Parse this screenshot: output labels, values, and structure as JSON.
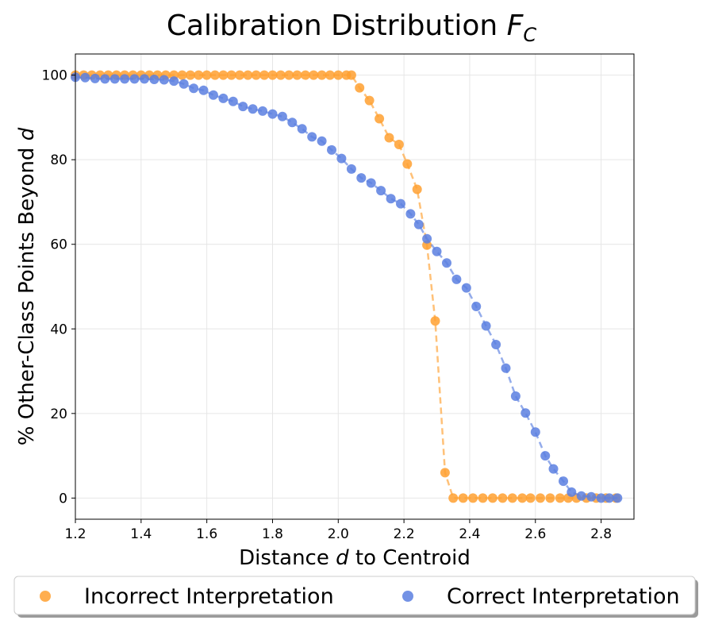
{
  "chart_data": {
    "type": "line",
    "title": "Calibration Distribution",
    "title_math": {
      "symbol": "F",
      "subscript": "C"
    },
    "xlabel": {
      "prefix": "Distance ",
      "variable": "d",
      "suffix": " to Centroid"
    },
    "ylabel": {
      "prefix": "% Other-Class Points Beyond ",
      "variable": "d"
    },
    "xlim": [
      1.2,
      2.9
    ],
    "ylim": [
      -5,
      105
    ],
    "xticks": [
      1.2,
      1.4,
      1.6,
      1.8,
      2.0,
      2.2,
      2.4,
      2.6,
      2.8
    ],
    "xtick_labels": [
      "1.2",
      "1.4",
      "1.6",
      "1.8",
      "2.0",
      "2.2",
      "2.4",
      "2.6",
      "2.8"
    ],
    "yticks": [
      0,
      20,
      40,
      60,
      80,
      100
    ],
    "ytick_labels": [
      "0",
      "20",
      "40",
      "60",
      "80",
      "100"
    ],
    "grid": true,
    "legend_position": "bottom-center",
    "series": [
      {
        "name": "Incorrect Interpretation",
        "color": "#FFA030",
        "line_style": "dashed",
        "x": [
          1.2,
          1.225,
          1.25,
          1.275,
          1.3,
          1.325,
          1.35,
          1.375,
          1.4,
          1.425,
          1.45,
          1.475,
          1.5,
          1.525,
          1.55,
          1.575,
          1.6,
          1.625,
          1.65,
          1.675,
          1.7,
          1.725,
          1.75,
          1.775,
          1.8,
          1.825,
          1.85,
          1.875,
          1.9,
          1.925,
          1.95,
          1.975,
          2.0,
          2.025,
          2.04,
          2.065,
          2.095,
          2.125,
          2.155,
          2.185,
          2.21,
          2.24,
          2.27,
          2.295,
          2.325,
          2.35,
          2.38,
          2.41,
          2.44,
          2.47,
          2.5,
          2.53,
          2.56,
          2.585,
          2.615,
          2.645,
          2.675,
          2.7,
          2.725,
          2.755,
          2.785,
          2.815,
          2.845
        ],
        "values": [
          100,
          100,
          100,
          100,
          100,
          100,
          100,
          100,
          100,
          100,
          100,
          100,
          100,
          100,
          100,
          100,
          100,
          100,
          100,
          100,
          100,
          100,
          100,
          100,
          100,
          100,
          100,
          100,
          100,
          100,
          100,
          100,
          100,
          100,
          100,
          97,
          94,
          89.7,
          85.2,
          83.6,
          79,
          73,
          59.8,
          41.9,
          6,
          0,
          0,
          0,
          0,
          0,
          0,
          0,
          0,
          0,
          0,
          0,
          0,
          0,
          0,
          0,
          0,
          0,
          0
        ]
      },
      {
        "name": "Correct Interpretation",
        "color": "#5B7FE0",
        "line_style": "dashed",
        "x": [
          1.2,
          1.23,
          1.26,
          1.29,
          1.32,
          1.35,
          1.38,
          1.41,
          1.44,
          1.47,
          1.5,
          1.53,
          1.56,
          1.59,
          1.62,
          1.65,
          1.68,
          1.71,
          1.74,
          1.77,
          1.8,
          1.83,
          1.86,
          1.89,
          1.92,
          1.95,
          1.98,
          2.01,
          2.04,
          2.07,
          2.1,
          2.13,
          2.16,
          2.19,
          2.22,
          2.245,
          2.27,
          2.3,
          2.33,
          2.36,
          2.39,
          2.42,
          2.45,
          2.48,
          2.51,
          2.54,
          2.57,
          2.6,
          2.63,
          2.655,
          2.685,
          2.71,
          2.74,
          2.77,
          2.8,
          2.825,
          2.85
        ],
        "values": [
          99.5,
          99.4,
          99.2,
          99.1,
          99.1,
          99.1,
          99.1,
          99.1,
          99,
          98.9,
          98.6,
          97.9,
          96.9,
          96.4,
          95.3,
          94.5,
          93.8,
          92.6,
          92.0,
          91.5,
          90.8,
          90.2,
          88.8,
          87.3,
          85.4,
          84.4,
          82.3,
          80.3,
          77.8,
          75.7,
          74.5,
          72.7,
          70.8,
          69.6,
          67.2,
          64.7,
          61.3,
          58.3,
          55.6,
          51.7,
          49.7,
          45.3,
          40.7,
          36.3,
          30.7,
          24.1,
          20.1,
          15.6,
          10.0,
          6.9,
          4.0,
          1.4,
          0.5,
          0.3,
          0,
          0,
          0
        ]
      }
    ]
  }
}
